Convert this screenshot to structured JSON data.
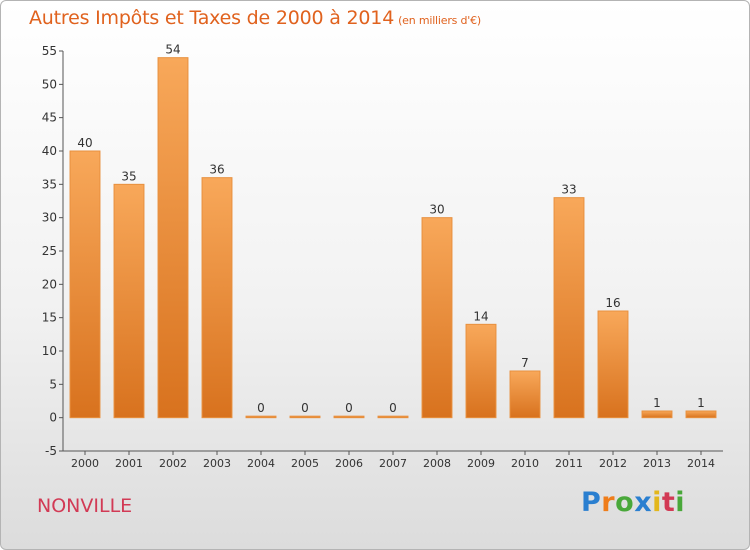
{
  "header": {
    "title": "Autres Impôts et Taxes de 2000 à 2014",
    "unit": "(en milliers d'€)"
  },
  "footer": {
    "place": "NONVILLE",
    "logo": {
      "letters": [
        "P",
        "r",
        "o",
        "x",
        "i",
        "t",
        "i"
      ],
      "colors": [
        "#2a7fd0",
        "#ef7d1a",
        "#49a83a",
        "#2a7fd0",
        "#e3b71c",
        "#d23a55",
        "#49a83a"
      ]
    }
  },
  "colors": {
    "bar_top": "#f8a85a",
    "bar_bottom": "#d8721e",
    "label": "#333333",
    "axis": "#555555"
  },
  "chart_data": {
    "type": "bar",
    "categories": [
      "2000",
      "2001",
      "2002",
      "2003",
      "2004",
      "2005",
      "2006",
      "2007",
      "2008",
      "2009",
      "2010",
      "2011",
      "2012",
      "2013",
      "2014"
    ],
    "values": [
      40,
      35,
      54,
      36,
      0,
      0,
      0,
      0,
      30,
      14,
      7,
      33,
      16,
      1,
      1
    ],
    "title": "Autres Impôts et Taxes de 2000 à 2014",
    "ylim": [
      -5,
      55
    ],
    "yticks": [
      -5,
      0,
      5,
      10,
      15,
      20,
      25,
      30,
      35,
      40,
      45,
      50,
      55
    ],
    "grid": false,
    "legend": "none"
  }
}
